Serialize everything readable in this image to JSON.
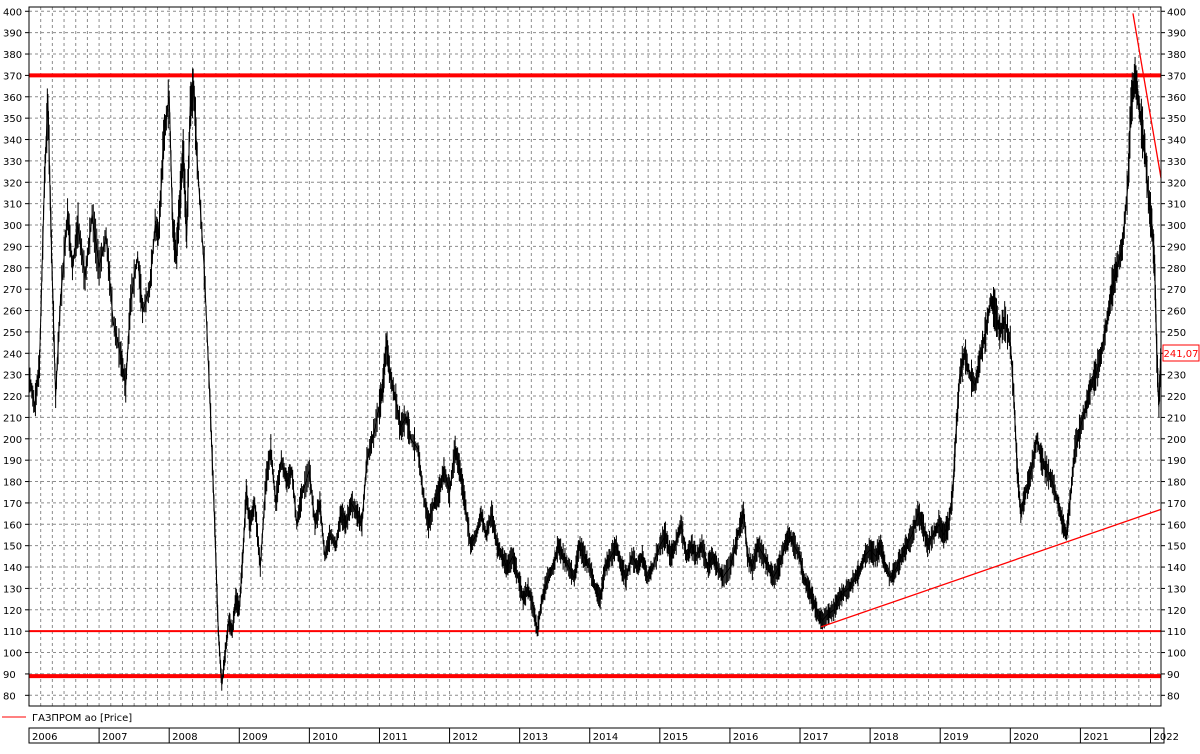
{
  "legend": {
    "label": "ГАЗПРОМ ао [Price]",
    "color": "#ff0000"
  },
  "last_price_label": "241,07",
  "colors": {
    "price": "#000000",
    "levels": "#ff0000",
    "grid": "#8c8c8c"
  },
  "chart_data": {
    "type": "line",
    "title": "",
    "xlabel": "",
    "ylabel": "",
    "series_name": "ГАЗПРОМ ао [Price]",
    "xlim": [
      2006.0,
      2022.15
    ],
    "ylim": [
      75,
      402
    ],
    "grid": true,
    "legend_position": "bottom-left",
    "yticks": [
      80,
      90,
      100,
      110,
      120,
      130,
      140,
      150,
      160,
      170,
      180,
      190,
      200,
      210,
      220,
      230,
      240,
      250,
      260,
      270,
      280,
      290,
      300,
      310,
      320,
      330,
      340,
      350,
      360,
      370,
      380,
      390,
      400
    ],
    "xtick_labels": [
      "2006",
      "2007",
      "2008",
      "2009",
      "2010",
      "2011",
      "2012",
      "2013",
      "2014",
      "2015",
      "2016",
      "2017",
      "2018",
      "2019",
      "2020",
      "2021",
      "2022"
    ],
    "xtick_positions": [
      2006,
      2007,
      2008,
      2009,
      2010,
      2011,
      2012,
      2013,
      2014,
      2015,
      2016,
      2017,
      2018,
      2019,
      2020,
      2021,
      2022
    ],
    "price_points": [
      [
        2006.0,
        230
      ],
      [
        2006.08,
        215
      ],
      [
        2006.15,
        235
      ],
      [
        2006.22,
        320
      ],
      [
        2006.27,
        358
      ],
      [
        2006.32,
        290
      ],
      [
        2006.38,
        220
      ],
      [
        2006.45,
        265
      ],
      [
        2006.55,
        305
      ],
      [
        2006.62,
        280
      ],
      [
        2006.7,
        300
      ],
      [
        2006.8,
        275
      ],
      [
        2006.9,
        305
      ],
      [
        2007.0,
        280
      ],
      [
        2007.1,
        295
      ],
      [
        2007.2,
        255
      ],
      [
        2007.3,
        240
      ],
      [
        2007.38,
        225
      ],
      [
        2007.45,
        265
      ],
      [
        2007.55,
        285
      ],
      [
        2007.62,
        260
      ],
      [
        2007.72,
        270
      ],
      [
        2007.8,
        300
      ],
      [
        2007.85,
        295
      ],
      [
        2007.92,
        340
      ],
      [
        2008.0,
        360
      ],
      [
        2008.05,
        300
      ],
      [
        2008.1,
        285
      ],
      [
        2008.15,
        310
      ],
      [
        2008.2,
        335
      ],
      [
        2008.25,
        295
      ],
      [
        2008.3,
        355
      ],
      [
        2008.35,
        365
      ],
      [
        2008.4,
        330
      ],
      [
        2008.5,
        280
      ],
      [
        2008.58,
        220
      ],
      [
        2008.65,
        160
      ],
      [
        2008.7,
        110
      ],
      [
        2008.75,
        85
      ],
      [
        2008.8,
        100
      ],
      [
        2008.85,
        115
      ],
      [
        2008.9,
        110
      ],
      [
        2008.95,
        125
      ],
      [
        2009.0,
        120
      ],
      [
        2009.05,
        145
      ],
      [
        2009.1,
        175
      ],
      [
        2009.15,
        160
      ],
      [
        2009.22,
        170
      ],
      [
        2009.3,
        140
      ],
      [
        2009.38,
        180
      ],
      [
        2009.45,
        195
      ],
      [
        2009.52,
        170
      ],
      [
        2009.6,
        190
      ],
      [
        2009.68,
        180
      ],
      [
        2009.75,
        185
      ],
      [
        2009.82,
        160
      ],
      [
        2009.9,
        175
      ],
      [
        2010.0,
        185
      ],
      [
        2010.08,
        160
      ],
      [
        2010.15,
        170
      ],
      [
        2010.22,
        145
      ],
      [
        2010.3,
        155
      ],
      [
        2010.38,
        150
      ],
      [
        2010.45,
        165
      ],
      [
        2010.52,
        160
      ],
      [
        2010.6,
        170
      ],
      [
        2010.68,
        165
      ],
      [
        2010.75,
        160
      ],
      [
        2010.82,
        190
      ],
      [
        2010.9,
        200
      ],
      [
        2011.0,
        215
      ],
      [
        2011.05,
        225
      ],
      [
        2011.1,
        245
      ],
      [
        2011.15,
        230
      ],
      [
        2011.22,
        220
      ],
      [
        2011.3,
        205
      ],
      [
        2011.38,
        210
      ],
      [
        2011.45,
        200
      ],
      [
        2011.55,
        195
      ],
      [
        2011.62,
        175
      ],
      [
        2011.7,
        160
      ],
      [
        2011.78,
        170
      ],
      [
        2011.85,
        175
      ],
      [
        2011.92,
        185
      ],
      [
        2012.0,
        175
      ],
      [
        2012.08,
        195
      ],
      [
        2012.15,
        185
      ],
      [
        2012.22,
        170
      ],
      [
        2012.3,
        150
      ],
      [
        2012.38,
        155
      ],
      [
        2012.45,
        165
      ],
      [
        2012.52,
        155
      ],
      [
        2012.6,
        165
      ],
      [
        2012.68,
        150
      ],
      [
        2012.75,
        145
      ],
      [
        2012.82,
        140
      ],
      [
        2012.9,
        145
      ],
      [
        2012.98,
        135
      ],
      [
        2013.05,
        125
      ],
      [
        2013.12,
        130
      ],
      [
        2013.2,
        120
      ],
      [
        2013.25,
        110
      ],
      [
        2013.32,
        125
      ],
      [
        2013.4,
        135
      ],
      [
        2013.48,
        140
      ],
      [
        2013.55,
        150
      ],
      [
        2013.62,
        145
      ],
      [
        2013.7,
        140
      ],
      [
        2013.78,
        135
      ],
      [
        2013.85,
        150
      ],
      [
        2013.92,
        145
      ],
      [
        2014.0,
        140
      ],
      [
        2014.08,
        130
      ],
      [
        2014.15,
        125
      ],
      [
        2014.22,
        140
      ],
      [
        2014.3,
        145
      ],
      [
        2014.38,
        150
      ],
      [
        2014.45,
        140
      ],
      [
        2014.52,
        135
      ],
      [
        2014.6,
        145
      ],
      [
        2014.68,
        140
      ],
      [
        2014.75,
        145
      ],
      [
        2014.82,
        135
      ],
      [
        2014.9,
        140
      ],
      [
        2015.0,
        150
      ],
      [
        2015.08,
        155
      ],
      [
        2015.15,
        145
      ],
      [
        2015.22,
        150
      ],
      [
        2015.3,
        160
      ],
      [
        2015.38,
        145
      ],
      [
        2015.45,
        150
      ],
      [
        2015.52,
        145
      ],
      [
        2015.6,
        150
      ],
      [
        2015.68,
        140
      ],
      [
        2015.75,
        145
      ],
      [
        2015.82,
        140
      ],
      [
        2015.9,
        135
      ],
      [
        2016.0,
        140
      ],
      [
        2016.08,
        150
      ],
      [
        2016.15,
        160
      ],
      [
        2016.2,
        165
      ],
      [
        2016.25,
        145
      ],
      [
        2016.32,
        140
      ],
      [
        2016.4,
        150
      ],
      [
        2016.48,
        145
      ],
      [
        2016.55,
        140
      ],
      [
        2016.62,
        135
      ],
      [
        2016.7,
        140
      ],
      [
        2016.78,
        150
      ],
      [
        2016.85,
        155
      ],
      [
        2016.92,
        150
      ],
      [
        2017.0,
        145
      ],
      [
        2017.05,
        135
      ],
      [
        2017.12,
        130
      ],
      [
        2017.18,
        125
      ],
      [
        2017.25,
        118
      ],
      [
        2017.32,
        115
      ],
      [
        2017.4,
        118
      ],
      [
        2017.48,
        120
      ],
      [
        2017.55,
        125
      ],
      [
        2017.62,
        128
      ],
      [
        2017.7,
        130
      ],
      [
        2017.78,
        135
      ],
      [
        2017.85,
        138
      ],
      [
        2017.92,
        145
      ],
      [
        2018.0,
        148
      ],
      [
        2018.08,
        145
      ],
      [
        2018.15,
        150
      ],
      [
        2018.22,
        140
      ],
      [
        2018.3,
        135
      ],
      [
        2018.38,
        140
      ],
      [
        2018.45,
        145
      ],
      [
        2018.52,
        150
      ],
      [
        2018.6,
        155
      ],
      [
        2018.68,
        165
      ],
      [
        2018.75,
        160
      ],
      [
        2018.82,
        150
      ],
      [
        2018.9,
        155
      ],
      [
        2018.98,
        160
      ],
      [
        2019.05,
        155
      ],
      [
        2019.12,
        160
      ],
      [
        2019.18,
        175
      ],
      [
        2019.22,
        200
      ],
      [
        2019.28,
        230
      ],
      [
        2019.35,
        240
      ],
      [
        2019.42,
        230
      ],
      [
        2019.5,
        225
      ],
      [
        2019.58,
        240
      ],
      [
        2019.65,
        250
      ],
      [
        2019.72,
        265
      ],
      [
        2019.78,
        260
      ],
      [
        2019.85,
        250
      ],
      [
        2019.92,
        255
      ],
      [
        2020.0,
        245
      ],
      [
        2020.05,
        220
      ],
      [
        2020.1,
        185
      ],
      [
        2020.15,
        165
      ],
      [
        2020.22,
        175
      ],
      [
        2020.3,
        185
      ],
      [
        2020.38,
        200
      ],
      [
        2020.45,
        190
      ],
      [
        2020.52,
        185
      ],
      [
        2020.6,
        180
      ],
      [
        2020.68,
        170
      ],
      [
        2020.75,
        160
      ],
      [
        2020.8,
        155
      ],
      [
        2020.85,
        170
      ],
      [
        2020.92,
        195
      ],
      [
        2021.0,
        205
      ],
      [
        2021.08,
        215
      ],
      [
        2021.15,
        225
      ],
      [
        2021.22,
        230
      ],
      [
        2021.3,
        240
      ],
      [
        2021.38,
        255
      ],
      [
        2021.45,
        270
      ],
      [
        2021.52,
        280
      ],
      [
        2021.6,
        290
      ],
      [
        2021.68,
        320
      ],
      [
        2021.72,
        355
      ],
      [
        2021.78,
        370
      ],
      [
        2021.82,
        360
      ],
      [
        2021.88,
        345
      ],
      [
        2021.92,
        335
      ],
      [
        2021.98,
        310
      ],
      [
        2022.02,
        300
      ],
      [
        2022.06,
        280
      ],
      [
        2022.09,
        240
      ],
      [
        2022.12,
        215
      ],
      [
        2022.15,
        241.07
      ]
    ],
    "horizontal_levels": [
      {
        "y": 370,
        "thick": true
      },
      {
        "y": 110,
        "thick": false
      },
      {
        "y": 89,
        "thick": true
      }
    ],
    "trendlines": [
      {
        "x1": 2017.3,
        "y1": 112,
        "x2": 2022.15,
        "y2": 167
      },
      {
        "x1": 2021.75,
        "y1": 399,
        "x2": 2022.15,
        "y2": 322
      }
    ]
  }
}
